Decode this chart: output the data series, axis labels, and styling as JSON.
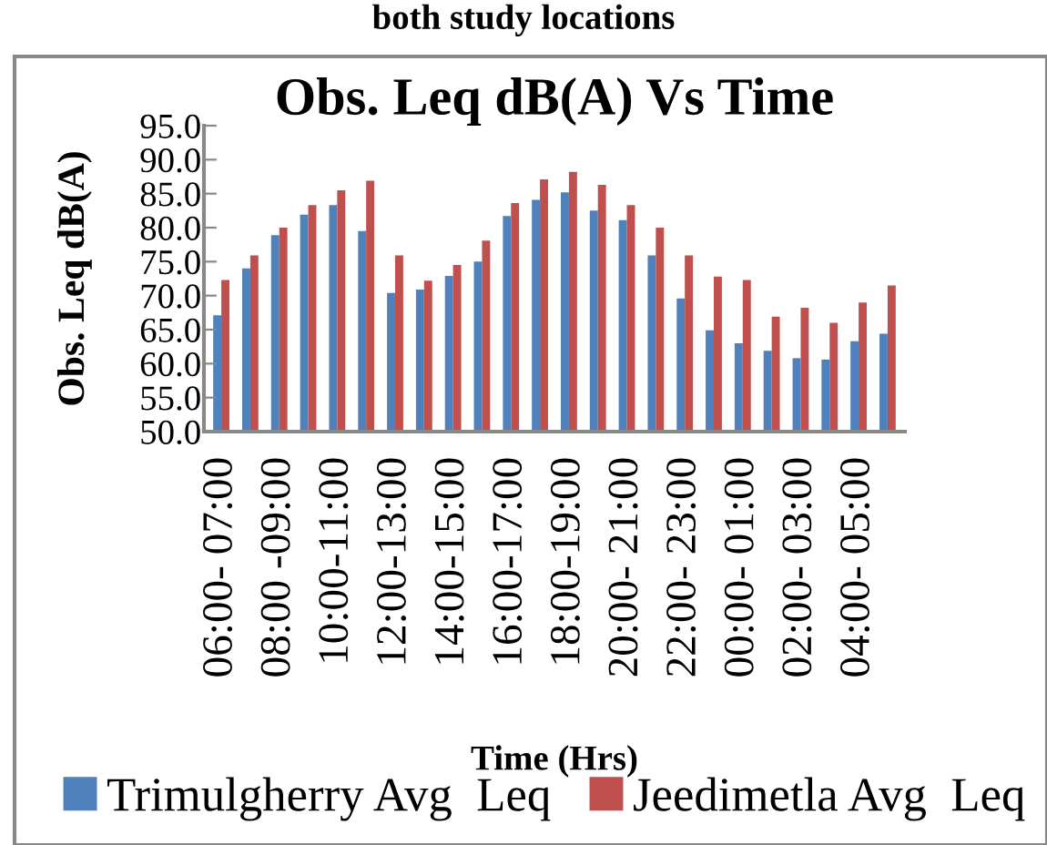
{
  "chart_data": {
    "type": "bar",
    "title": "Obs. Leq dB(A) Vs Time",
    "xlabel": "Time (Hrs)",
    "ylabel": "Obs. Leq dB(A)",
    "annotations": [
      "both study locations"
    ],
    "categories": [
      "06:00- 07:00",
      null,
      "08:00 -09:00",
      null,
      "10:00-11:00",
      null,
      "12:00-13:00",
      null,
      "14:00-15:00",
      null,
      "16:00-17:00",
      null,
      "18:00-19:00",
      null,
      "20:00- 21:00",
      null,
      "22:00- 23:00",
      null,
      "00:00- 01:00",
      null,
      "02:00- 03:00",
      null,
      "04:00- 05:00",
      null
    ],
    "series": [
      {
        "name": "Trimulgherry Avg  Leq",
        "color": "#4f81bd",
        "values": [
          67.1,
          74.0,
          78.9,
          81.9,
          83.3,
          79.5,
          70.4,
          70.9,
          72.9,
          75.0,
          81.7,
          84.1,
          85.2,
          82.5,
          81.1,
          75.9,
          69.6,
          64.9,
          63.0,
          61.9,
          60.8,
          60.6,
          63.3,
          64.4
        ]
      },
      {
        "name": "Jeedimetla Avg  Leq",
        "color": "#c0504d",
        "values": [
          72.3,
          75.9,
          80.0,
          83.3,
          85.5,
          86.9,
          75.9,
          72.2,
          74.5,
          78.1,
          83.6,
          87.1,
          88.2,
          86.3,
          83.3,
          80.0,
          75.9,
          72.8,
          72.3,
          66.9,
          68.2,
          66.0,
          69.0,
          71.5
        ]
      }
    ],
    "ylim": [
      50,
      95
    ],
    "yticks": [
      {
        "value": 50,
        "label": "50.0"
      },
      {
        "value": 55,
        "label": "55.0"
      },
      {
        "value": 60,
        "label": "60.0"
      },
      {
        "value": 65,
        "label": "65.0"
      },
      {
        "value": 70,
        "label": "70.0"
      },
      {
        "value": 75,
        "label": "75.0"
      },
      {
        "value": 80,
        "label": "80.0"
      },
      {
        "value": 85,
        "label": "85.0"
      },
      {
        "value": 90,
        "label": "90.0"
      },
      {
        "value": 95,
        "label": "95.0"
      }
    ],
    "grid": false,
    "legend": "bottom"
  }
}
